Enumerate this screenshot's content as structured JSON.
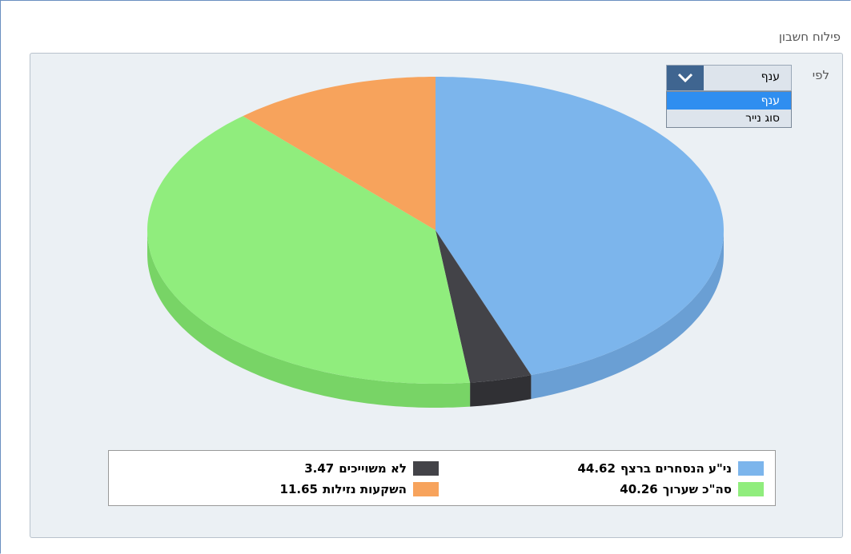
{
  "panel_title": "פילוח חשבון",
  "filter_label": "לפי",
  "dropdown": {
    "selected": "ענף",
    "options": [
      "ענף",
      "סוג נייר"
    ],
    "highlighted": 0
  },
  "chart_data": {
    "type": "pie",
    "categories": [
      "ני\"ע הנסחרים ברצף",
      "לא משוייכים",
      "סה\"כ שערוך",
      "השקעות נזילות"
    ],
    "values": [
      44.62,
      3.47,
      40.26,
      11.65
    ],
    "colors": [
      "#7cb5ec",
      "#434348",
      "#90ed7d",
      "#f7a35c"
    ],
    "side_colors": [
      "#6a9fd4",
      "#303034",
      "#78d466",
      "#dd8a45"
    ],
    "start_angle": 0,
    "direction": "clockwise",
    "three_d": true
  }
}
